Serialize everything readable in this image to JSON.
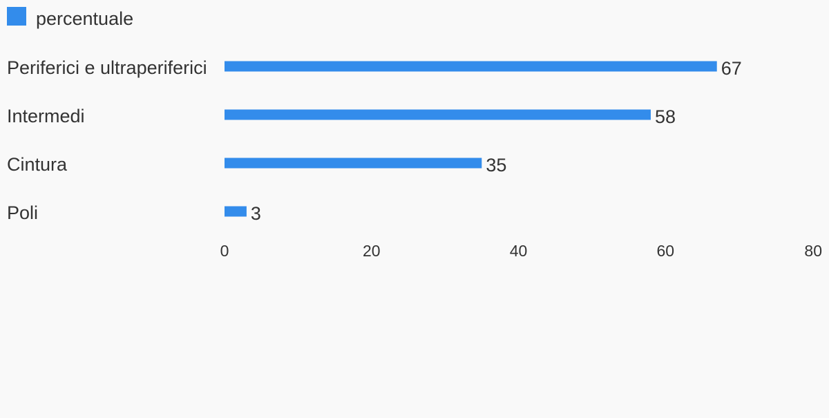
{
  "chart_data": {
    "type": "bar",
    "orientation": "horizontal",
    "title": "",
    "xlabel": "",
    "ylabel": "",
    "categories": [
      "Periferici e ultraperiferici",
      "Intermedi",
      "Cintura",
      "Poli"
    ],
    "series": [
      {
        "name": "percentuale",
        "values": [
          67,
          58,
          35,
          3
        ],
        "color": "#338ceb"
      }
    ],
    "xlim": [
      0,
      80
    ],
    "xticks": [
      "0",
      "20",
      "40",
      "60",
      "80"
    ],
    "grid": false,
    "legend_position": "top-left",
    "data_labels": true
  }
}
